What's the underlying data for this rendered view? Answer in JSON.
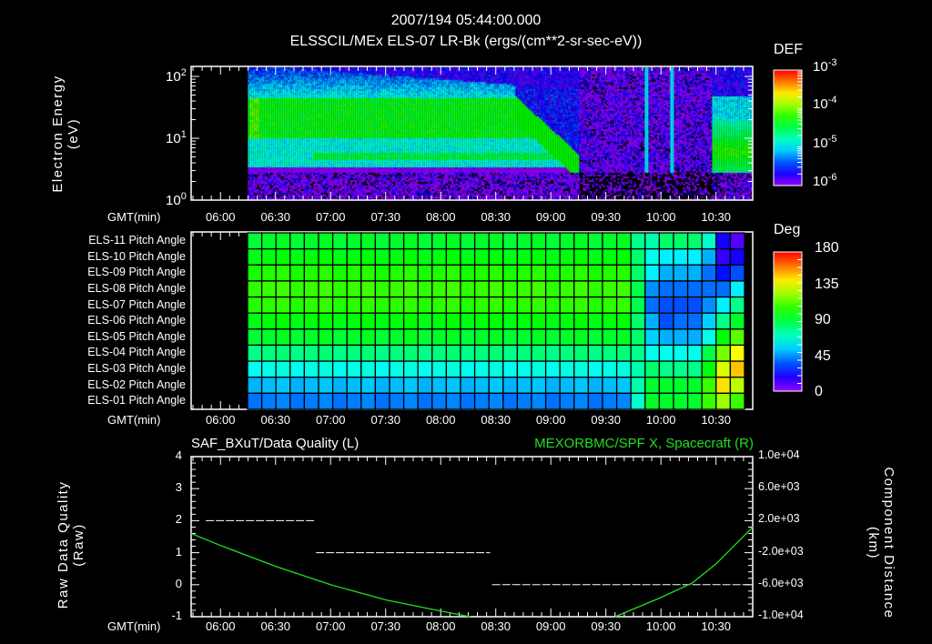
{
  "header": {
    "title": "2007/194 05:44:00.000",
    "subtitle": "ELSSCIL/MEx ELS-07 LR-Bk  (ergs/(cm**2-sr-sec-eV))"
  },
  "colors": {
    "background": "#000000",
    "axis": "#ffffff",
    "green_trace": "#22dd22"
  },
  "chart_data": [
    {
      "type": "heatmap",
      "name": "energy-spectrogram",
      "ylabel": "Electron Energy",
      "yunits": "(eV)",
      "yscale": "log",
      "ylim": [
        1,
        145
      ],
      "ytick_labels": [
        {
          "base": "10",
          "exp": "0"
        },
        {
          "base": "10",
          "exp": "1"
        },
        {
          "base": "10",
          "exp": "2"
        }
      ],
      "xlabel": "GMT(min)",
      "xlim": [
        "05:44",
        "10:50"
      ],
      "xtick_labels": [
        "06:00",
        "06:30",
        "07:00",
        "07:30",
        "08:00",
        "08:30",
        "09:00",
        "09:30",
        "10:00",
        "10:30"
      ],
      "data_start": "06:15",
      "colorbar": {
        "title": "DEF",
        "scale": "log",
        "range": [
          1e-06,
          0.001
        ],
        "tick_labels": [
          {
            "base": "10",
            "exp": "-3"
          },
          {
            "base": "10",
            "exp": "-4"
          },
          {
            "base": "10",
            "exp": "-5"
          },
          {
            "base": "10",
            "exp": "-6"
          }
        ]
      }
    },
    {
      "type": "heatmap",
      "name": "pitch-angle",
      "xlabel": "GMT(min)",
      "xlim": [
        "05:44",
        "10:50"
      ],
      "xtick_labels": [
        "06:00",
        "06:30",
        "07:00",
        "07:30",
        "08:00",
        "08:30",
        "09:00",
        "09:30",
        "10:00",
        "10:30"
      ],
      "data_start": "06:15",
      "columns": 35,
      "rows": [
        {
          "label": "ELS-11 Pitch Angle",
          "base": 95,
          "late": [
            80,
            75,
            85,
            85,
            85,
            70,
            20,
            10
          ]
        },
        {
          "label": "ELS-10 Pitch Angle",
          "base": 100,
          "late": [
            85,
            65,
            60,
            60,
            60,
            50,
            15,
            20
          ]
        },
        {
          "label": "ELS-09 Pitch Angle",
          "base": 106,
          "late": [
            85,
            60,
            50,
            50,
            50,
            40,
            25,
            35
          ]
        },
        {
          "label": "ELS-08 Pitch Angle",
          "base": 110,
          "late": [
            90,
            45,
            40,
            40,
            40,
            40,
            40,
            60
          ]
        },
        {
          "label": "ELS-07 Pitch Angle",
          "base": 108,
          "late": [
            90,
            40,
            35,
            35,
            35,
            45,
            60,
            80
          ]
        },
        {
          "label": "ELS-06 Pitch Angle",
          "base": 100,
          "late": [
            85,
            50,
            35,
            40,
            40,
            55,
            80,
            95
          ]
        },
        {
          "label": "ELS-05 Pitch Angle",
          "base": 95,
          "late": [
            85,
            55,
            50,
            50,
            50,
            65,
            100,
            115
          ]
        },
        {
          "label": "ELS-04 Pitch Angle",
          "base": 82,
          "late": [
            80,
            65,
            65,
            65,
            65,
            90,
            120,
            140
          ]
        },
        {
          "label": "ELS-03 Pitch Angle",
          "base": 66,
          "late": [
            75,
            85,
            80,
            80,
            80,
            100,
            135,
            150
          ]
        },
        {
          "label": "ELS-02 Pitch Angle",
          "base": 52,
          "late": [
            75,
            95,
            95,
            95,
            95,
            110,
            145,
            130
          ]
        },
        {
          "label": "ELS-01 Pitch Angle",
          "base": 42,
          "late": [
            70,
            95,
            95,
            95,
            95,
            110,
            125,
            110
          ]
        }
      ],
      "colorbar": {
        "title": "Deg",
        "range": [
          0,
          180
        ],
        "tick_labels": [
          "180",
          "135",
          "90",
          "45",
          "0"
        ]
      }
    },
    {
      "type": "line",
      "name": "quality-and-position",
      "title_left": "SAF_BXuT/Data Quality (L)",
      "title_right": "MEXORBMC/SPF X, Spacecraft (R)",
      "ylabel_left": "Raw Data Quality",
      "yunits_left": "(Raw)",
      "ylim_left": [
        -1,
        4
      ],
      "ytick_labels_left": [
        "4",
        "3",
        "2",
        "1",
        "0",
        "-1"
      ],
      "ylabel_right": "Component Distance",
      "yunits_right": "(km)",
      "ylim_right": [
        -10000,
        10000
      ],
      "ytick_labels_right": [
        "1.0e+04",
        "6.0e+03",
        "2.0e+03",
        "-2.0e+03",
        "-6.0e+03",
        "-1.0e+04"
      ],
      "xlabel": "GMT(min)",
      "xlim": [
        "05:44",
        "10:50"
      ],
      "xtick_labels": [
        "06:00",
        "06:30",
        "07:00",
        "07:30",
        "08:00",
        "08:30",
        "09:00",
        "09:30",
        "10:00",
        "10:30"
      ],
      "series": [
        {
          "name": "Data Quality",
          "axis": "left",
          "color": "#ffffff",
          "style": "dashed",
          "segments": [
            {
              "from": "05:52",
              "to": "06:51",
              "value": 2
            },
            {
              "from": "06:52",
              "to": "08:27",
              "value": 1
            },
            {
              "from": "08:28",
              "to": "10:49",
              "value": 0
            }
          ]
        },
        {
          "name": "SPF X",
          "axis": "right",
          "color": "#22dd22",
          "points": [
            [
              "05:44",
              400
            ],
            [
              "06:00",
              -1100
            ],
            [
              "06:30",
              -3700
            ],
            [
              "07:00",
              -6000
            ],
            [
              "07:30",
              -7900
            ],
            [
              "08:00",
              -9300
            ],
            [
              "08:16",
              -10000
            ],
            [
              "09:35",
              -10000
            ],
            [
              "10:00",
              -7600
            ],
            [
              "10:17",
              -5800
            ],
            [
              "10:30",
              -3400
            ],
            [
              "10:50",
              1200
            ]
          ]
        }
      ]
    }
  ]
}
